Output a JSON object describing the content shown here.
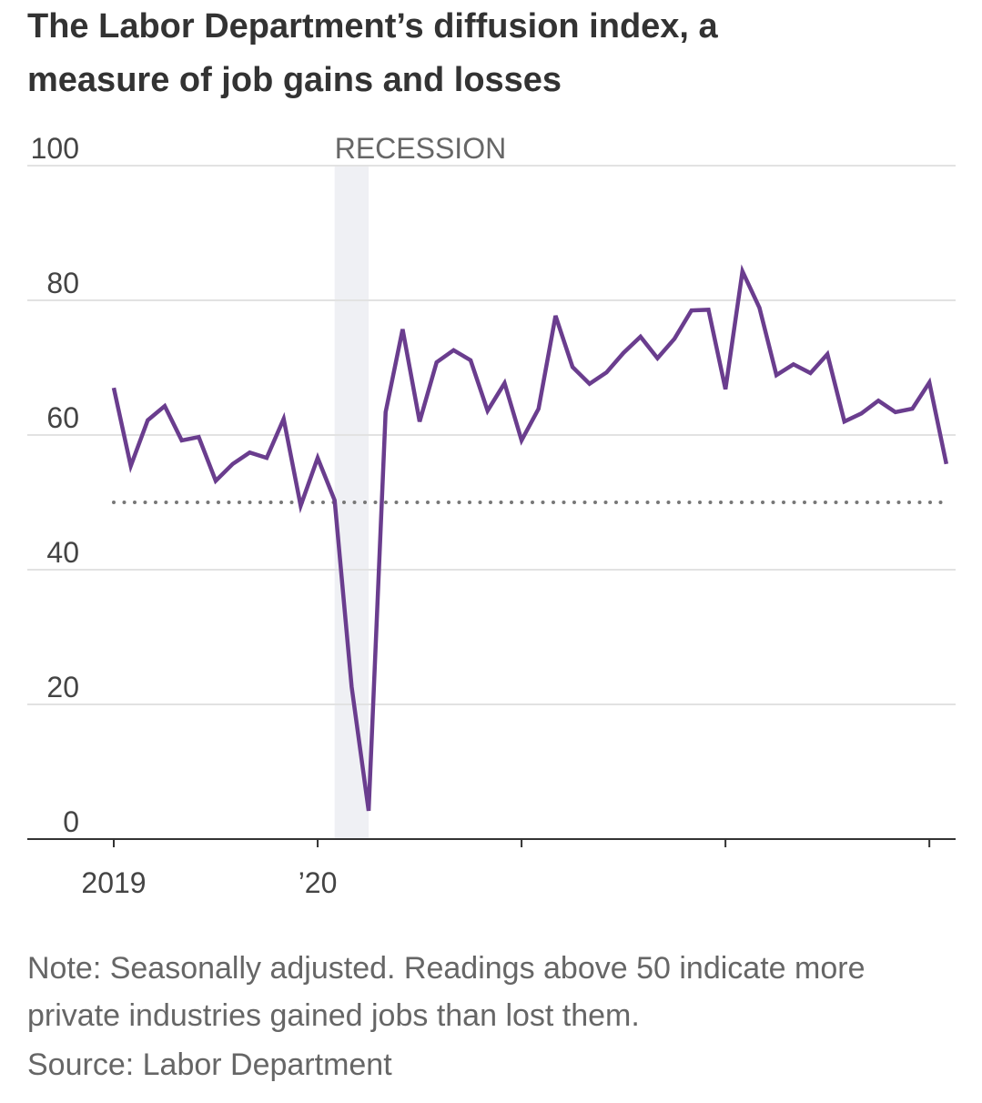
{
  "chart_data": {
    "type": "line",
    "title": "The Labor Department’s diffusion index, a measure of job gains and losses",
    "note": "Note: Seasonally adjusted. Readings above 50 indicate more private industries gained jobs than lost them.",
    "source": "Source: Labor Department",
    "categories": [
      "2019",
      null,
      null,
      null,
      null,
      null,
      null,
      null,
      null,
      null,
      null,
      null,
      "’20",
      null,
      null,
      null,
      null,
      null,
      null,
      null,
      null,
      null,
      null,
      null,
      null,
      null,
      null,
      null,
      null,
      null,
      null,
      null,
      null,
      null,
      null,
      null,
      null,
      null,
      null,
      null,
      null,
      null,
      null,
      null,
      null,
      null,
      null,
      null,
      null,
      null
    ],
    "values": [
      67,
      55.4,
      62.2,
      64.3,
      59.2,
      59.7,
      53.2,
      55.7,
      57.4,
      56.6,
      62.4,
      49.5,
      56.6,
      50.3,
      22.6,
      4.2,
      63.4,
      75.7,
      62,
      70.8,
      72.6,
      71.1,
      63.6,
      67.7,
      59.2,
      63.9,
      77.7,
      70.1,
      67.6,
      69.3,
      72.2,
      74.6,
      71.4,
      74.3,
      78.5,
      78.6,
      66.8,
      84.3,
      78.9,
      68.9,
      70.5,
      69.2,
      72,
      62,
      63.2,
      65.1,
      63.4,
      63.9,
      67.8,
      55.7
    ],
    "color": "#6a3d8e",
    "ylim": [
      0,
      100
    ],
    "yticks": [
      0,
      20,
      40,
      60,
      80,
      100
    ],
    "grid": true,
    "reference_line": 50,
    "shaded_region": {
      "label": "RECESSION",
      "from": 13,
      "to": 15
    }
  }
}
